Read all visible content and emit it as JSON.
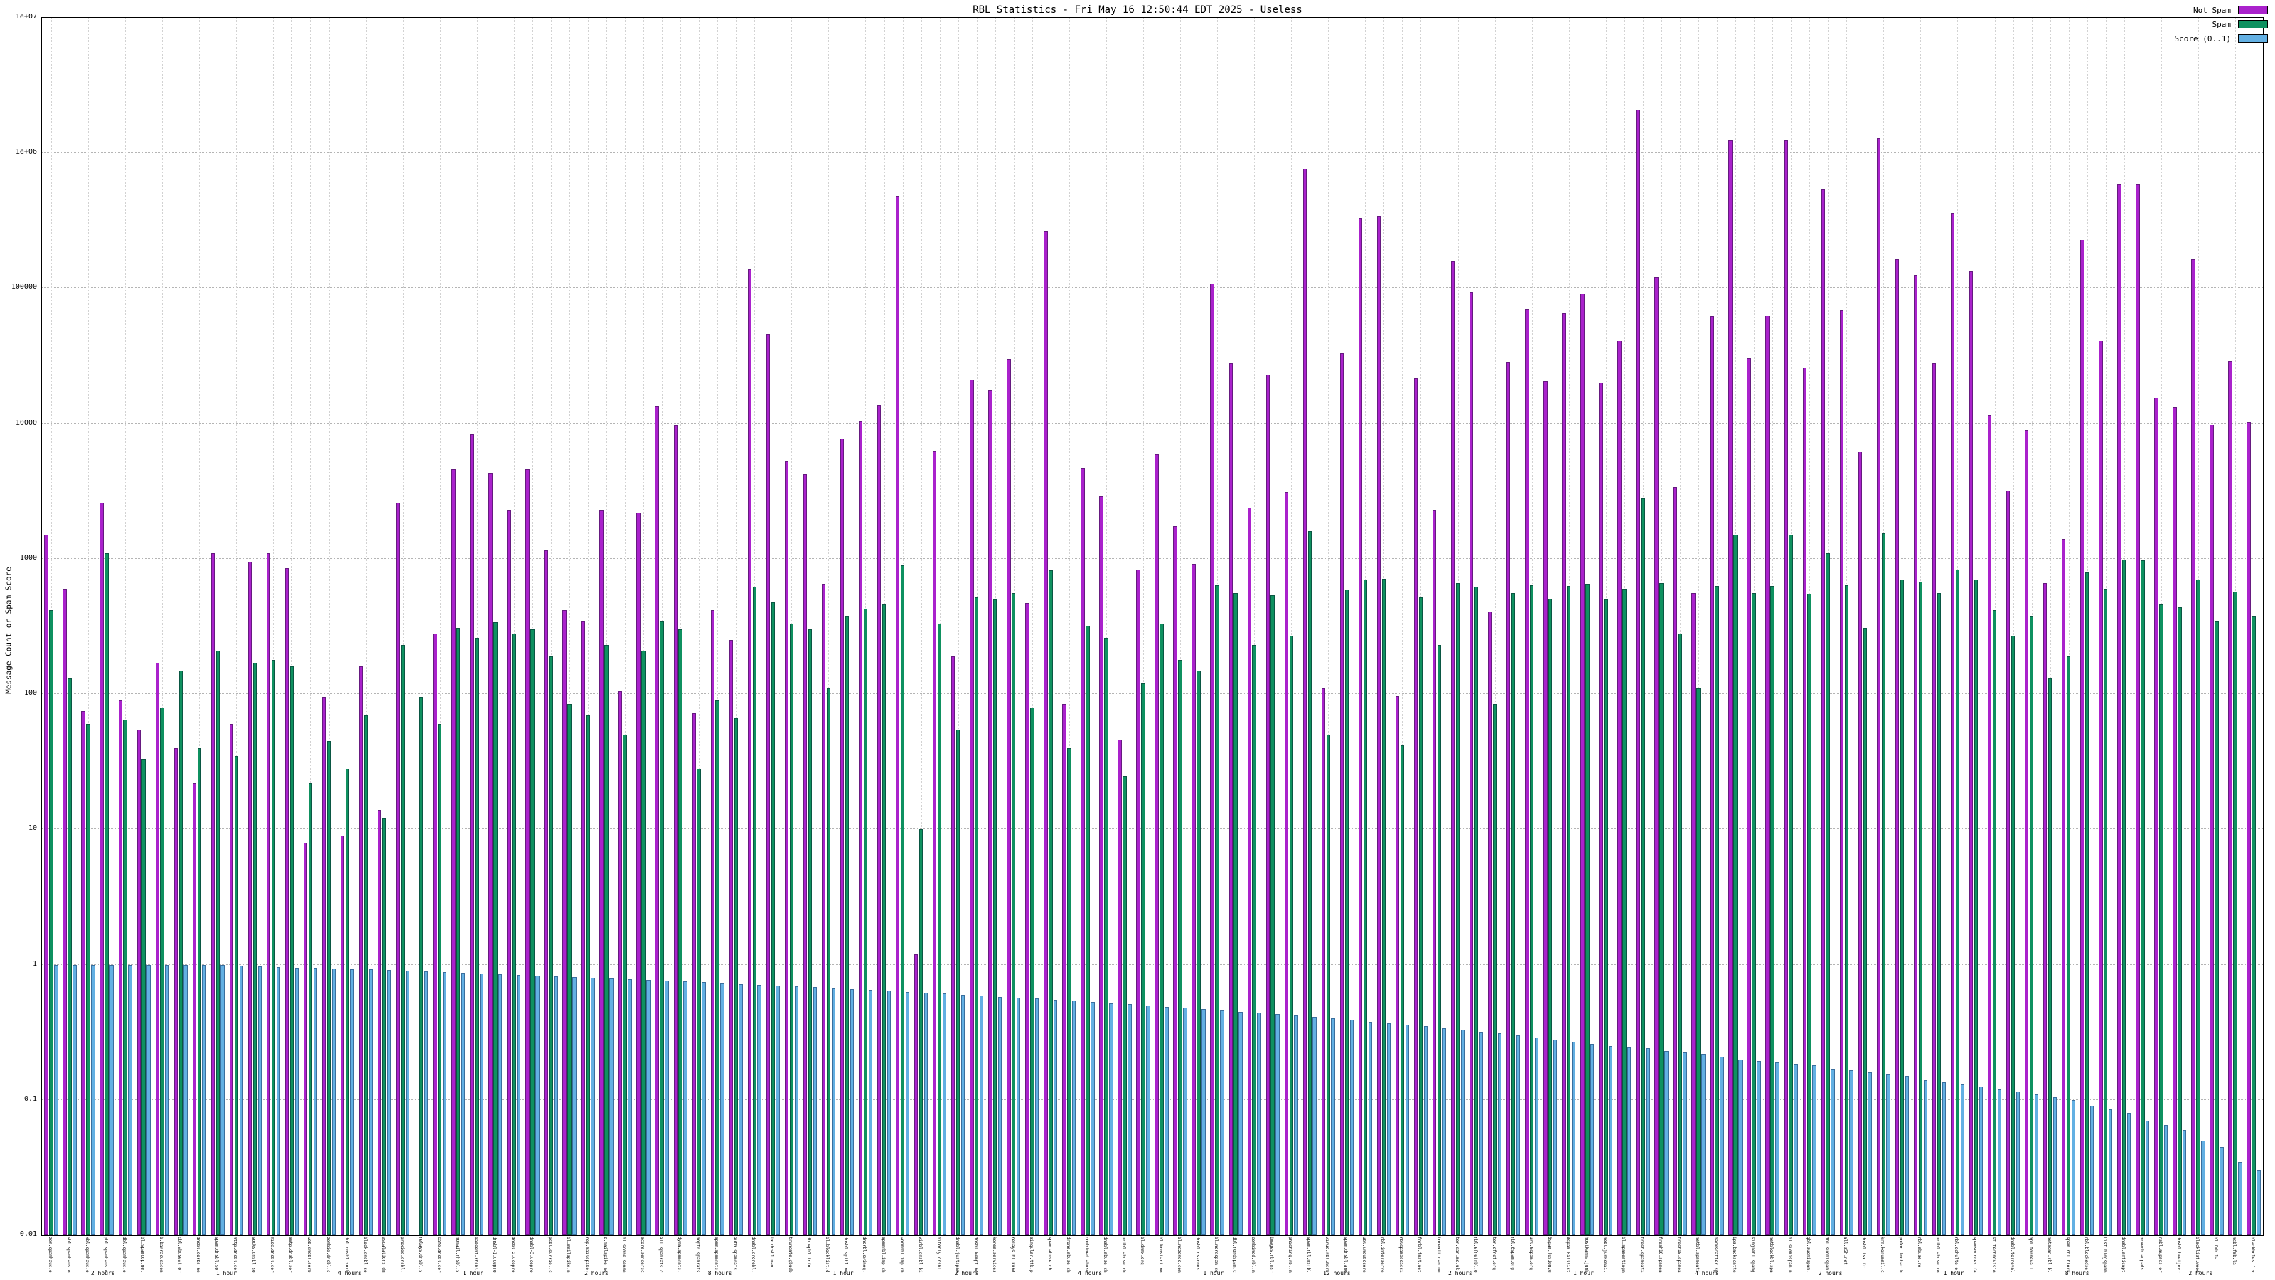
{
  "window": {
    "background": "#ffffff"
  },
  "chart_data": {
    "type": "bar",
    "scale": "log",
    "title": "RBL Statistics - Fri May 16 12:50:44 EDT 2025 - Useless",
    "ylabel": "Message Count or Spam Score",
    "xlabel": "",
    "ylim": [
      0.01,
      10000000
    ],
    "ytick_labels": [
      "0.01",
      "0.1",
      "1",
      "10",
      "100",
      "1000",
      "10000",
      "100000",
      "1e+06",
      "1e+07"
    ],
    "grid": true,
    "legend_position": "top-right",
    "categories": [
      "zen.spamhaus.org",
      "sbl.spamhaus.org",
      "xbl.spamhaus.org",
      "pbl.spamhaus.org",
      "dbl.spamhaus.org",
      "bl.spamcop.net",
      "b.barracudacentral.org",
      "cbl.abuseat.org",
      "dnsbl.sorbs.net",
      "spam.dnsbl.sorbs.net",
      "http.dnsbl.sorbs.net",
      "socks.dnsbl.sorbs.net",
      "misc.dnsbl.sorbs.net",
      "smtp.dnsbl.sorbs.net",
      "web.dnsbl.sorbs.net",
      "zombie.dnsbl.sorbs.net",
      "dul.dnsbl.sorbs.net",
      "block.dnsbl.sorbs.net",
      "escalations.dnsbl.sorbs.net",
      "proxies.dnsbl.sorbs.net",
      "relays.dnsbl.sorbs.net",
      "safe.dnsbl.sorbs.net",
      "nomail.rhsbl.sorbs.net",
      "badconf.rhsbl.sorbs.net",
      "dnsbl-1.uceprotect.net",
      "dnsbl-2.uceprotect.net",
      "dnsbl-3.uceprotect.net",
      "psbl.surriel.com",
      "bl.mailspike.net",
      "rep.mailspike.net",
      "z.mailspike.net",
      "bl.score.senderscore.com",
      "score.senderscore.com",
      "all.spamrats.com",
      "dyna.spamrats.com",
      "noptr.spamrats.com",
      "spam.spamrats.com",
      "auth.spamrats.com",
      "dnsbl.dronebl.org",
      "ix.dnsbl.manitu.net",
      "truncate.gbudb.net",
      "db.wpbl.info",
      "bl.blocklist.de",
      "dnsbl.spfbl.net",
      "dnsrbl.swinog.ch",
      "spamrbl.imp.ch",
      "wormrbl.imp.ch",
      "virbl.dnsbl.bit.nl",
      "bitonly.dnsbl.bit.nl",
      "dnsbl.justspam.org",
      "dnsbl.kempt.net",
      "korea.services.net",
      "relays.bl.kundenserver.de",
      "singular.ttk.pte.hu",
      "spam.abuse.ch",
      "drone.abuse.ch",
      "combined.abuse.ch",
      "dnsbl.abuse.ch",
      "uribl.abuse.ch",
      "bl.drmx.org",
      "bl.konstant.no",
      "bl.nszones.com",
      "dnsbl.nszones.com",
      "bl.nordspam.com",
      "dbl.nordspam.com",
      "combined.rbl.msrbl.net",
      "images.rbl.msrbl.net",
      "phishing.rbl.msrbl.net",
      "spam.rbl.msrbl.net",
      "virus.rbl.msrbl.net",
      "spam.dnsbl.anonmails.de",
      "ubl.unsubscore.com",
      "rbl.interserver.net",
      "rblspamassassin.interserver.net",
      "fnrbl.fast.net",
      "torexit.dan.me.uk",
      "tor.dan.me.uk",
      "rbl.efnetrbl.org",
      "tor.efnet.org",
      "rbl.0spam.org",
      "url.0spam.org",
      "0spam.fusionzero.com",
      "0spam-killlist.fusionzero.com",
      "hostkarma.junkemailfilter.com",
      "nobl.junkemailfilter.com",
      "bl.spameatingmonkey.net",
      "fresh.spameatingmonkey.net",
      "fresh10.spameatingmonkey.net",
      "fresh15.spameatingmonkey.net",
      "netbl.spameatingmonkey.net",
      "backscatter.spameatingmonkey.net",
      "ips.backscatterer.org",
      "singlebl.spamgrouper.com",
      "netblockbl.spamgrouper.to",
      "bl.suomispam.net",
      "gbl.suomispam.net",
      "dbl.suomispam.net",
      "all.s5h.net",
      "dnsbl.isx.fr",
      "krn.korumail.com",
      "pofon.foobar.hu",
      "rbl.abuse.ro",
      "uribl.abuse.ro",
      "rbl.schulte.org",
      "spamsources.fabel.dk",
      "st.technovision.dk",
      "dnsbl.tornevall.org",
      "opm.tornevall.org",
      "netscan.rbl.blockedservers.com",
      "spam.rbl.blockedservers.com",
      "rbl.blockedservers.com",
      "list.blogspambl.com",
      "dnsbl.anticaptcha.net",
      "orvedb.aupads.org",
      "rsbl.aupads.org",
      "dnsbl.beetjevreemd.nl",
      "blacklist.woody.ch",
      "bl.fmb.la",
      "nsbl.fmb.la",
      "blackholes.five-ten-sg.com"
    ],
    "group_labels": [
      "2 hours",
      "1 hour",
      "4 hours",
      "1 hour",
      "2 hours",
      "8 hours",
      "1 hour",
      "2 hours",
      "4 hours",
      "1 hour",
      "12 hours",
      "2 hours",
      "1 hour",
      "4 hours",
      "2 hours",
      "1 hour",
      "8 hours",
      "2 hours"
    ],
    "series": [
      {
        "name": "Not Spam",
        "color": "#aa22cc",
        "border": "#661a80",
        "values": [
          1500,
          600,
          75,
          2600,
          90,
          55,
          170,
          40,
          22,
          1100,
          60,
          950,
          1100,
          850,
          8,
          95,
          9,
          160,
          14,
          2600,
          0,
          280,
          4600,
          8300,
          4300,
          2300,
          4600,
          1150,
          420,
          350,
          2300,
          105,
          2200,
          13500,
          9700,
          72,
          420,
          250,
          140000,
          46000,
          5300,
          4200,
          650,
          7700,
          10500,
          13600,
          480000,
          1.2,
          6300,
          190,
          21000,
          17500,
          30000,
          470,
          265000,
          85,
          4700,
          2900,
          46,
          830,
          5900,
          1750,
          920,
          108000,
          28000,
          2400,
          23000,
          3100,
          770000,
          110,
          33000,
          330000,
          340000,
          96,
          21500,
          2300,
          160000,
          93000,
          410,
          28500,
          70000,
          20500,
          66000,
          91000,
          20000,
          41000,
          2100000,
          120000,
          3400,
          560,
          62000,
          1250000,
          30500,
          63000,
          1250000,
          26000,
          540000,
          69000,
          6200,
          1300000,
          165000,
          125000,
          28000,
          360000,
          135000,
          11500,
          3200,
          8900,
          660,
          1400,
          230000,
          41000,
          590000,
          590000,
          15500,
          13200,
          165000,
          9800,
          29000,
          10200
        ]
      },
      {
        "name": "Spam",
        "color": "#0f9160",
        "border": "#0a5743",
        "values": [
          420,
          130,
          60,
          1100,
          65,
          33,
          80,
          150,
          40,
          210,
          35,
          170,
          180,
          160,
          22,
          45,
          28,
          70,
          12,
          230,
          95,
          60,
          310,
          260,
          340,
          280,
          300,
          190,
          85,
          70,
          230,
          50,
          210,
          350,
          300,
          28,
          90,
          66,
          620,
          480,
          330,
          300,
          110,
          380,
          430,
          460,
          900,
          10,
          330,
          55,
          520,
          500,
          560,
          80,
          820,
          40,
          320,
          260,
          25,
          120,
          330,
          180,
          150,
          640,
          560,
          230,
          540,
          270,
          1600,
          50,
          590,
          700,
          710,
          42,
          520,
          230,
          660,
          620,
          85,
          560,
          640,
          510,
          630,
          650,
          500,
          600,
          2800,
          660,
          280,
          110,
          630,
          1500,
          560,
          630,
          1500,
          550,
          1100,
          640,
          310,
          1550,
          700,
          680,
          560,
          830,
          700,
          420,
          270,
          380,
          130,
          190,
          790,
          600,
          990,
          980,
          460,
          440,
          700,
          350,
          570,
          380
        ]
      },
      {
        "name": "Score (0..1)",
        "color": "#63b0e3",
        "border": "#3a6f9e",
        "values": [
          1,
          1,
          1,
          1,
          1,
          1,
          1,
          1,
          1,
          1,
          0.98,
          0.97,
          0.96,
          0.95,
          0.95,
          0.94,
          0.93,
          0.92,
          0.91,
          0.9,
          0.89,
          0.88,
          0.87,
          0.86,
          0.85,
          0.84,
          0.83,
          0.82,
          0.81,
          0.8,
          0.79,
          0.78,
          0.77,
          0.76,
          0.75,
          0.74,
          0.73,
          0.72,
          0.71,
          0.7,
          0.69,
          0.68,
          0.67,
          0.66,
          0.65,
          0.64,
          0.63,
          0.62,
          0.61,
          0.6,
          0.59,
          0.58,
          0.57,
          0.56,
          0.55,
          0.54,
          0.53,
          0.52,
          0.51,
          0.5,
          0.49,
          0.48,
          0.47,
          0.46,
          0.45,
          0.44,
          0.43,
          0.42,
          0.41,
          0.4,
          0.39,
          0.38,
          0.37,
          0.36,
          0.35,
          0.34,
          0.33,
          0.32,
          0.31,
          0.3,
          0.29,
          0.28,
          0.27,
          0.26,
          0.25,
          0.245,
          0.24,
          0.23,
          0.225,
          0.22,
          0.21,
          0.2,
          0.195,
          0.19,
          0.185,
          0.18,
          0.17,
          0.165,
          0.16,
          0.155,
          0.15,
          0.14,
          0.135,
          0.13,
          0.125,
          0.12,
          0.115,
          0.11,
          0.105,
          0.1,
          0.09,
          0.085,
          0.08,
          0.07,
          0.065,
          0.06,
          0.05,
          0.045,
          0.035,
          0.03
        ]
      }
    ]
  }
}
